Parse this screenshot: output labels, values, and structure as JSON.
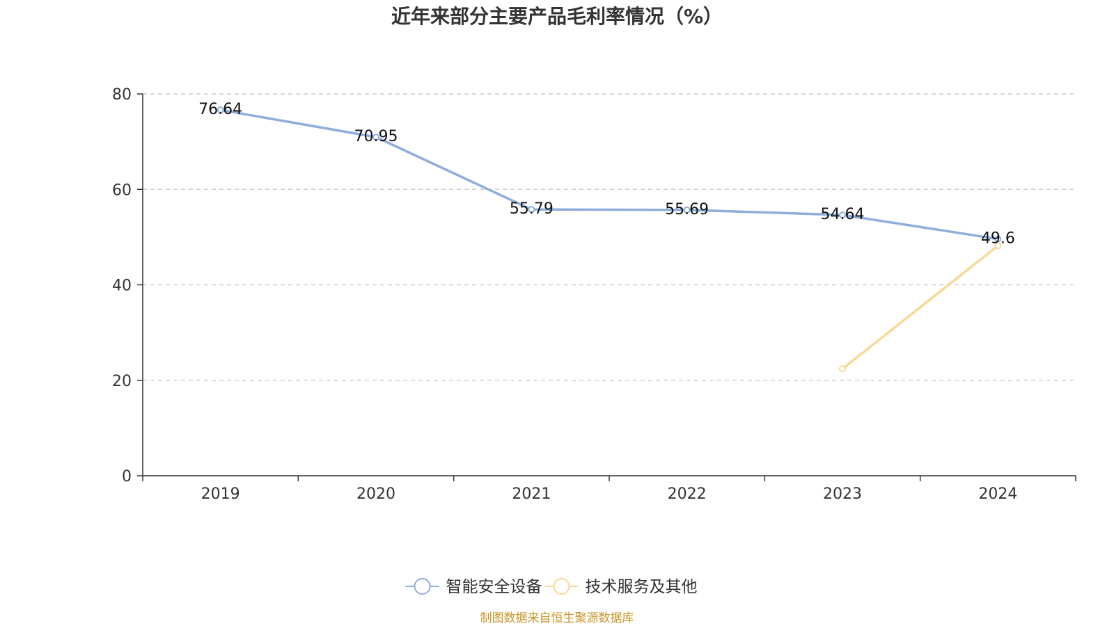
{
  "chart_data": {
    "type": "line",
    "title": "近年来部分主要产品毛利率情况（%）",
    "categories": [
      "2019",
      "2020",
      "2021",
      "2022",
      "2023",
      "2024"
    ],
    "series": [
      {
        "name": "智能安全设备",
        "color": "#8eaedb",
        "values": [
          76.64,
          70.95,
          55.79,
          55.69,
          54.64,
          49.6
        ],
        "labels": [
          "76.64",
          "70.95",
          "55.79",
          "55.69",
          "54.64",
          "49.6"
        ],
        "show_labels": true
      },
      {
        "name": "技术服务及其他",
        "color": "#f8d898",
        "values": [
          null,
          null,
          null,
          null,
          22.4,
          48.2
        ],
        "labels": [
          "",
          "",
          "",
          "",
          "",
          ""
        ],
        "show_labels": false
      }
    ],
    "yticks": [
      "0",
      "20",
      "40",
      "60",
      "80"
    ],
    "ytick_values": [
      0,
      20,
      40,
      60,
      80
    ],
    "ylim": [
      0,
      80
    ],
    "xlabel": "",
    "ylabel": "",
    "grid": true,
    "legend": "bottom-center"
  },
  "source": "制图数据来自恒生聚源数据库"
}
